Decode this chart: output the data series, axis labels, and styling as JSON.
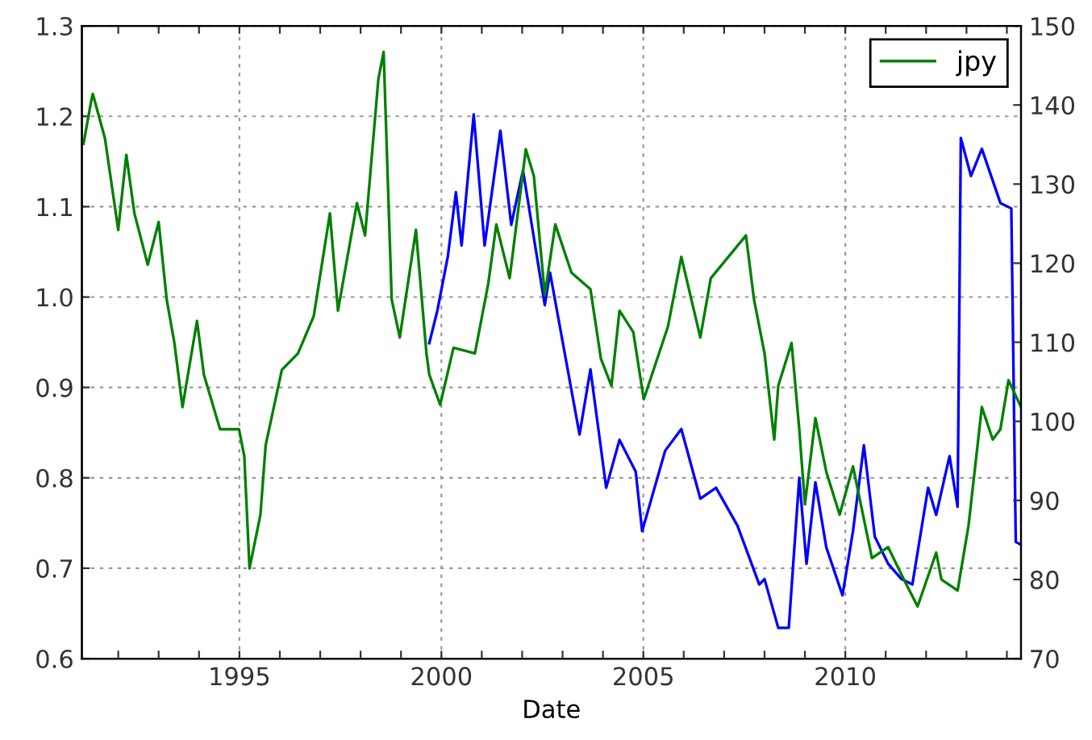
{
  "chart_data": {
    "type": "line",
    "xlabel": "Date",
    "xlim": [
      1991.1,
      2014.35
    ],
    "xticks": [
      {
        "value": 1992,
        "label": null
      },
      {
        "value": 1993,
        "label": null
      },
      {
        "value": 1994,
        "label": null
      },
      1995,
      {
        "value": 1996,
        "label": null
      },
      {
        "value": 1997,
        "label": null
      },
      {
        "value": 1998,
        "label": null
      },
      {
        "value": 1999,
        "label": null
      },
      2000,
      {
        "value": 2001,
        "label": null
      },
      {
        "value": 2002,
        "label": null
      },
      {
        "value": 2003,
        "label": null
      },
      {
        "value": 2004,
        "label": null
      },
      2005,
      {
        "value": 2006,
        "label": null
      },
      {
        "value": 2007,
        "label": null
      },
      {
        "value": 2008,
        "label": null
      },
      {
        "value": 2009,
        "label": null
      },
      2010,
      {
        "value": 2011,
        "label": null
      },
      {
        "value": 2012,
        "label": null
      },
      {
        "value": 2013,
        "label": null
      },
      {
        "value": 2014,
        "label": null
      }
    ],
    "ylim": [
      0.6,
      1.3
    ],
    "yticks": [
      0.6,
      0.7,
      0.8,
      0.9,
      {
        "value": 1,
        "label": "1.0"
      },
      1.1,
      1.2,
      1.3
    ],
    "y2lim": [
      70,
      150
    ],
    "y2ticks": [
      70,
      80,
      90,
      100,
      110,
      120,
      130,
      140,
      150
    ],
    "grid": true,
    "legend": "top right",
    "series": [
      {
        "color": "#0000ff",
        "x": [
          1999.7,
          1999.9,
          2000.16,
          2000.36,
          2000.5,
          2000.8,
          2001.07,
          2001.46,
          2001.73,
          2002.02,
          2002.56,
          2002.69,
          2003.42,
          2003.69,
          2004.08,
          2004.41,
          2004.81,
          2004.97,
          2005.54,
          2005.94,
          2006.41,
          2006.8,
          2007.33,
          2007.87,
          2008.0,
          2008.34,
          2008.6,
          2008.86,
          2009.04,
          2009.26,
          2009.53,
          2009.93,
          2010.19,
          2010.46,
          2010.73,
          2011.06,
          2011.39,
          2011.66,
          2012.05,
          2012.25,
          2012.58,
          2012.78,
          2012.86,
          2013.11,
          2013.38,
          2013.84,
          2014.11,
          2014.22,
          2014.35
        ],
        "values": [
          0.949,
          0.985,
          1.045,
          1.116,
          1.057,
          1.202,
          1.057,
          1.184,
          1.08,
          1.14,
          0.991,
          1.027,
          0.848,
          0.92,
          0.789,
          0.842,
          0.807,
          0.741,
          0.83,
          0.854,
          0.777,
          0.789,
          0.747,
          0.682,
          0.688,
          0.634,
          0.634,
          0.8,
          0.705,
          0.795,
          0.723,
          0.67,
          0.741,
          0.836,
          0.735,
          0.705,
          0.688,
          0.682,
          0.789,
          0.759,
          0.824,
          0.768,
          1.176,
          1.134,
          1.164,
          1.104,
          1.098,
          0.729,
          0.726
        ]
      },
      {
        "name": "jpy",
        "color": "#008000",
        "axis": "y2",
        "x": [
          1991.14,
          1991.33,
          1991.37,
          1991.67,
          1992.0,
          1992.2,
          1992.4,
          1992.73,
          1993.0,
          1993.2,
          1993.39,
          1993.59,
          1993.95,
          1994.12,
          1994.52,
          1994.99,
          1995.12,
          1995.25,
          1995.52,
          1995.65,
          1996.05,
          1996.45,
          1996.84,
          1997.24,
          1997.44,
          1997.91,
          1998.11,
          1998.44,
          1998.57,
          1998.77,
          1998.97,
          1999.37,
          1999.63,
          1999.7,
          1999.97,
          2000.3,
          2000.83,
          2001.16,
          2001.36,
          2001.69,
          2002.09,
          2002.29,
          2002.56,
          2002.82,
          2003.22,
          2003.69,
          2003.95,
          2004.21,
          2004.41,
          2004.75,
          2005.01,
          2005.61,
          2005.94,
          2006.41,
          2006.67,
          2007.54,
          2007.74,
          2008.0,
          2008.24,
          2008.34,
          2008.67,
          2008.86,
          2009.0,
          2009.26,
          2009.53,
          2009.86,
          2010.19,
          2010.66,
          2011.06,
          2011.45,
          2011.79,
          2012.25,
          2012.38,
          2012.78,
          2013.05,
          2013.38,
          2013.65,
          2013.84,
          2014.04,
          2014.35
        ],
        "values": [
          135.1,
          140.5,
          141.4,
          135.8,
          124.2,
          133.7,
          126.3,
          119.8,
          125.2,
          115.4,
          109.9,
          101.8,
          112.7,
          105.9,
          99.0,
          99.0,
          95.6,
          81.4,
          88.2,
          97.0,
          106.5,
          108.6,
          113.3,
          126.3,
          114.0,
          127.6,
          123.5,
          143.3,
          146.7,
          115.4,
          110.6,
          124.2,
          108.6,
          105.9,
          102.1,
          109.3,
          108.6,
          117.4,
          124.9,
          118.1,
          134.4,
          131.0,
          116.0,
          124.9,
          118.8,
          116.7,
          107.9,
          104.5,
          114.0,
          111.3,
          102.8,
          112.0,
          120.8,
          110.6,
          118.1,
          123.5,
          115.4,
          108.6,
          97.7,
          104.5,
          109.9,
          99.0,
          89.5,
          100.4,
          93.6,
          88.2,
          94.3,
          82.7,
          84.1,
          80.0,
          76.6,
          83.4,
          80.0,
          78.6,
          86.8,
          101.8,
          97.7,
          99.0,
          105.2,
          101.8
        ]
      }
    ]
  }
}
